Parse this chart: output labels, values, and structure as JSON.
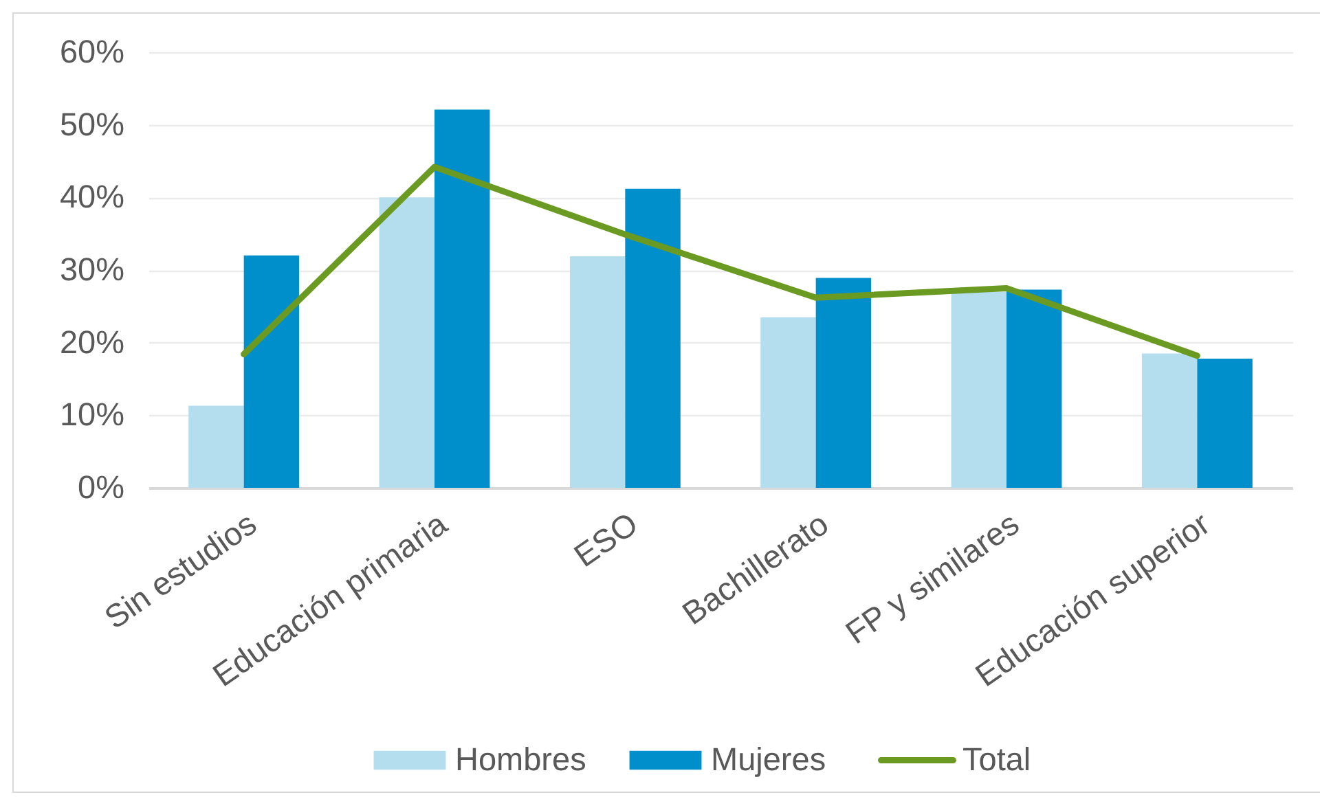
{
  "chart_data": {
    "type": "bar",
    "categories": [
      "Sin estudios",
      "Educación primaria",
      "ESO",
      "Bachillerato",
      "FP y similares",
      "Educación superior"
    ],
    "series": [
      {
        "name": "Hombres",
        "color": "#b4ddee",
        "values": [
          11.3,
          40,
          31.9,
          23.5,
          27,
          18.5
        ]
      },
      {
        "name": "Mujeres",
        "color": "#008fca",
        "values": [
          32,
          52.1,
          41.2,
          28.9,
          27.3,
          17.8
        ]
      },
      {
        "name": "Total",
        "type": "line",
        "color": "#6b9a22",
        "values": [
          18.4,
          44.2,
          34.9,
          26.2,
          27.5,
          18.2
        ]
      }
    ],
    "ylim": [
      0,
      60
    ],
    "yticks": [
      {
        "value": 0,
        "label": "0%"
      },
      {
        "value": 10,
        "label": "10%"
      },
      {
        "value": 20,
        "label": "20%"
      },
      {
        "value": 30,
        "label": "30%"
      },
      {
        "value": 40,
        "label": "40%"
      },
      {
        "value": 50,
        "label": "50%"
      },
      {
        "value": 60,
        "label": "60%"
      }
    ],
    "grid": "y",
    "legend": "bottom"
  }
}
